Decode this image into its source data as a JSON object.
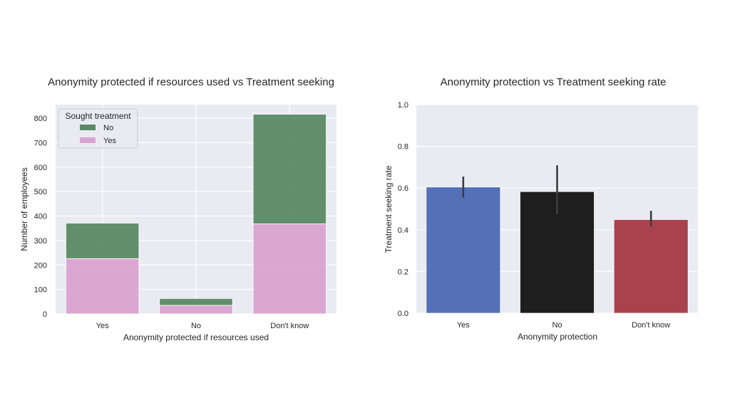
{
  "chart_data": [
    {
      "type": "bar",
      "stacked": true,
      "title": "Anonymity protected if resources used vs Treatment seeking",
      "xlabel": "Anonymity protected if resources used",
      "ylabel": "Number of employees",
      "categories": [
        "Yes",
        "No",
        "Don't know"
      ],
      "series": [
        {
          "name": "Yes",
          "values": [
            226,
            35,
            368
          ],
          "color": "#d9a3d1"
        },
        {
          "name": "No",
          "values": [
            145,
            28,
            448
          ],
          "color": "#5a8a64"
        }
      ],
      "ylim": [
        0,
        850
      ],
      "yticks": [
        0,
        100,
        200,
        300,
        400,
        500,
        600,
        700,
        800
      ],
      "grid": true,
      "legend": {
        "title": "Sought treatment",
        "entries": [
          "No",
          "Yes"
        ],
        "placement": "top-left"
      }
    },
    {
      "type": "bar",
      "title": "Anonymity protection vs Treatment seeking rate",
      "xlabel": "Anonymity protection",
      "ylabel": "Treatment seeking rate",
      "categories": [
        "Yes",
        "No",
        "Don't know"
      ],
      "values": [
        0.605,
        0.583,
        0.449
      ],
      "error_low": [
        0.554,
        0.474,
        0.415
      ],
      "error_high": [
        0.655,
        0.709,
        0.491
      ],
      "colors": [
        "#5370b8",
        "#1f1e1f",
        "#a8434d"
      ],
      "ylim": [
        0,
        1.0
      ],
      "yticks": [
        "0.0",
        "0.2",
        "0.4",
        "0.6",
        "0.8",
        "1.0"
      ],
      "grid": true
    }
  ]
}
